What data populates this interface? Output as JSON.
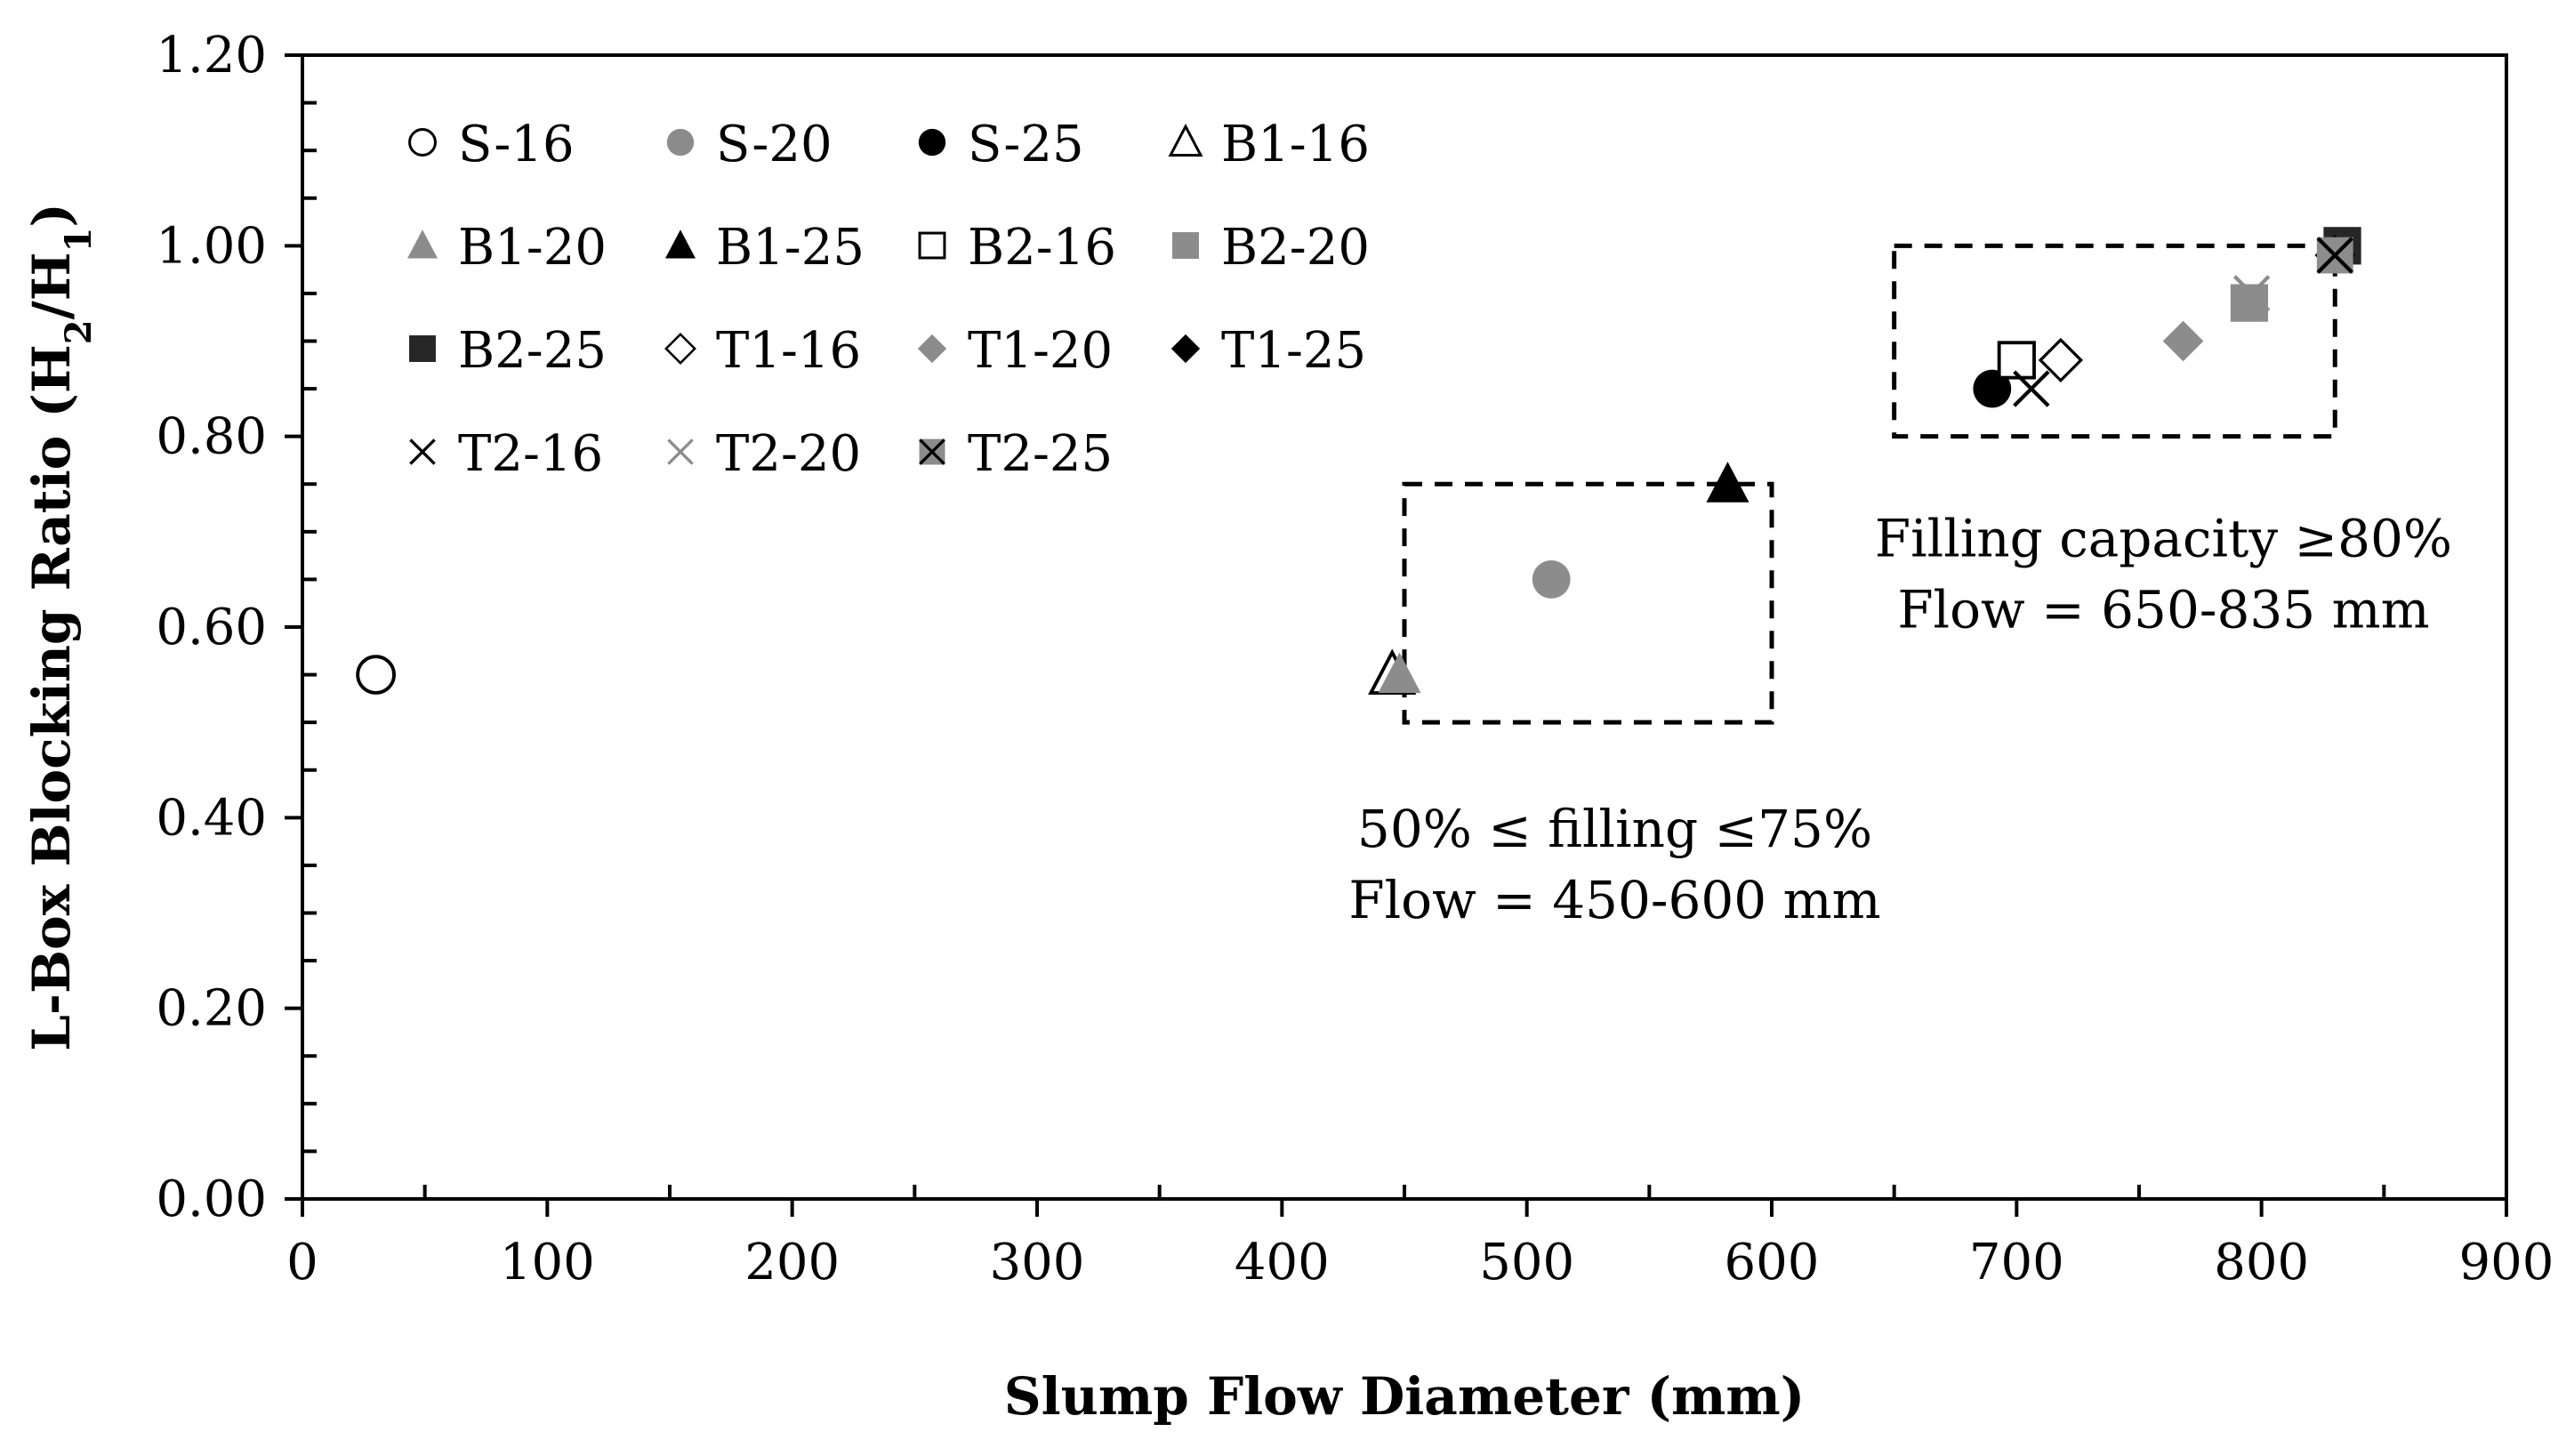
{
  "chart_data": {
    "type": "scatter",
    "xlabel": "Slump Flow Diameter (mm)",
    "ylabel": "L-Box Blocking Ratio (H2/H1)",
    "ylabel_parts": {
      "main": "L-Box Blocking Ratio (H",
      "sub1": "2",
      "slash": "/H",
      "sub2": "1",
      "close": ")"
    },
    "xlim": [
      0,
      900
    ],
    "ylim": [
      0,
      1.2
    ],
    "x_ticks": [
      "0",
      "100",
      "200",
      "300",
      "400",
      "500",
      "600",
      "700",
      "800",
      "900"
    ],
    "y_ticks": [
      "0.00",
      "0.20",
      "0.40",
      "0.60",
      "0.80",
      "1.00",
      "1.20"
    ],
    "grid": false,
    "legend_placement": "top-left, inside plot",
    "series": [
      {
        "name": "S-16",
        "marker": "circle-open",
        "color": "#000000",
        "x": [
          30
        ],
        "y": [
          0.55
        ]
      },
      {
        "name": "S-20",
        "marker": "circle-filled",
        "color": "#8c8c8c",
        "x": [
          510
        ],
        "y": [
          0.65
        ]
      },
      {
        "name": "S-25",
        "marker": "circle-filled",
        "color": "#000000",
        "x": [
          690
        ],
        "y": [
          0.85
        ]
      },
      {
        "name": "B1-16",
        "marker": "triangle-open",
        "color": "#000000",
        "x": [
          445
        ],
        "y": [
          0.55
        ]
      },
      {
        "name": "B1-20",
        "marker": "triangle-filled",
        "color": "#8c8c8c",
        "x": [
          448
        ],
        "y": [
          0.55
        ]
      },
      {
        "name": "B1-25",
        "marker": "triangle-filled",
        "color": "#000000",
        "x": [
          582
        ],
        "y": [
          0.75
        ]
      },
      {
        "name": "B2-16",
        "marker": "square-open",
        "color": "#000000",
        "x": [
          700
        ],
        "y": [
          0.88
        ]
      },
      {
        "name": "B2-20",
        "marker": "square-filled",
        "color": "#8c8c8c",
        "x": [
          795
        ],
        "y": [
          0.94
        ]
      },
      {
        "name": "B2-25",
        "marker": "square-filled",
        "color": "#262626",
        "x": [
          833
        ],
        "y": [
          1.0
        ]
      },
      {
        "name": "T1-16",
        "marker": "diamond-open",
        "color": "#000000",
        "x": [
          718
        ],
        "y": [
          0.88
        ]
      },
      {
        "name": "T1-20",
        "marker": "diamond-filled",
        "color": "#8c8c8c",
        "x": [
          768
        ],
        "y": [
          0.9
        ]
      },
      {
        "name": "T1-25",
        "marker": "diamond-filled",
        "color": "#000000",
        "x": [
          830
        ],
        "y": [
          0.99
        ]
      },
      {
        "name": "T2-16",
        "marker": "x",
        "color": "#000000",
        "x": [
          706
        ],
        "y": [
          0.85
        ]
      },
      {
        "name": "T2-20",
        "marker": "x",
        "color": "#8c8c8c",
        "x": [
          796
        ],
        "y": [
          0.95
        ]
      },
      {
        "name": "T2-25",
        "marker": "x-on-square",
        "color": "#000000",
        "x": [
          830
        ],
        "y": [
          0.99
        ]
      }
    ],
    "regions": [
      {
        "x": [
          450,
          600
        ],
        "y": [
          0.5,
          0.75
        ],
        "text_lines": [
          "50% ≤ filling ≤75%",
          "Flow = 450-600 mm"
        ]
      },
      {
        "x": [
          650,
          830
        ],
        "y": [
          0.8,
          1.0
        ],
        "text_lines": [
          "Filling capacity ≥80%",
          "Flow = 650-835 mm"
        ]
      }
    ]
  }
}
